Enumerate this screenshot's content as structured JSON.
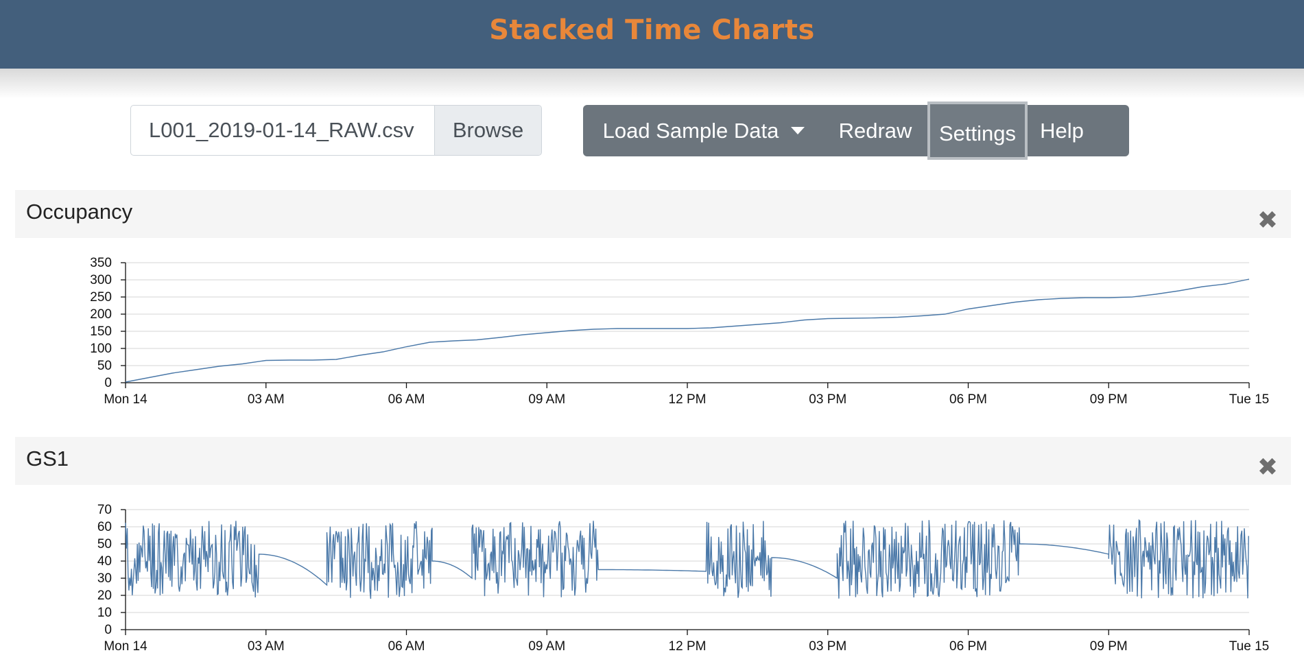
{
  "header": {
    "title": "Stacked Time Charts"
  },
  "file_input": {
    "value": "L001_2019-01-14_RAW.csv",
    "browse_label": "Browse"
  },
  "toolbar": {
    "load_sample_label": "Load Sample Data",
    "redraw_label": "Redraw",
    "settings_label": "Settings",
    "help_label": "Help"
  },
  "close_glyph": "✖",
  "colors": {
    "header_bg": "#435f7c",
    "title": "#e8873a",
    "line": "#4a78a8",
    "toolbar": "#6c757d"
  },
  "chart_data": [
    {
      "type": "line",
      "title": "Occupancy",
      "ylim": [
        0,
        350
      ],
      "yticks": [
        0,
        50,
        100,
        150,
        200,
        250,
        300,
        350
      ],
      "xlim": [
        0,
        24
      ],
      "xticks": [
        0,
        3,
        6,
        9,
        12,
        15,
        18,
        21,
        24
      ],
      "xtick_labels": [
        "Mon 14",
        "03 AM",
        "06 AM",
        "09 AM",
        "12 PM",
        "03 PM",
        "06 PM",
        "09 PM",
        "Tue 15"
      ],
      "grid": true,
      "x_unit": "hours from Mon 14 00:00",
      "x": [
        0,
        0.5,
        1,
        1.5,
        2,
        2.5,
        3,
        3.5,
        4,
        4.5,
        5,
        5.5,
        6,
        6.5,
        7,
        7.5,
        8,
        8.5,
        9,
        9.5,
        10,
        10.5,
        11,
        11.5,
        12,
        12.5,
        13,
        13.5,
        14,
        14.5,
        15,
        15.5,
        16,
        16.5,
        17,
        17.5,
        18,
        18.5,
        19,
        19.5,
        20,
        20.5,
        21,
        21.5,
        22,
        22.5,
        23,
        23.5,
        24
      ],
      "y": [
        2,
        15,
        28,
        38,
        48,
        55,
        65,
        66,
        66,
        68,
        80,
        90,
        105,
        118,
        122,
        125,
        132,
        140,
        146,
        152,
        156,
        158,
        158,
        158,
        158,
        160,
        165,
        170,
        175,
        183,
        187,
        188,
        189,
        191,
        195,
        200,
        215,
        225,
        235,
        242,
        246,
        248,
        248,
        250,
        258,
        268,
        280,
        288,
        302
      ]
    },
    {
      "type": "line",
      "title": "GS1",
      "ylim": [
        0,
        70
      ],
      "yticks": [
        0,
        10,
        20,
        30,
        40,
        50,
        60,
        70
      ],
      "xlim": [
        0,
        24
      ],
      "xticks": [
        0,
        3,
        6,
        9,
        12,
        15,
        18,
        21,
        24
      ],
      "xtick_labels": [
        "Mon 14",
        "03 AM",
        "06 AM",
        "09 AM",
        "12 PM",
        "03 PM",
        "06 PM",
        "09 PM",
        "Tue 15"
      ],
      "grid": true,
      "x_unit": "hours from Mon 14 00:00",
      "active_ranges": [
        [
          0,
          2.85
        ],
        [
          4.3,
          6.55
        ],
        [
          7.4,
          10.1
        ],
        [
          12.4,
          13.8
        ],
        [
          15.2,
          19.1
        ],
        [
          21.0,
          24
        ]
      ],
      "quiet_ranges": [
        {
          "from": 2.85,
          "to": 4.3,
          "y_start": 44,
          "y_end": 26
        },
        {
          "from": 6.55,
          "to": 7.4,
          "y_start": 40,
          "y_end": 30
        },
        {
          "from": 10.1,
          "to": 12.4,
          "y_start": 35,
          "y_end": 34
        },
        {
          "from": 13.8,
          "to": 15.2,
          "y_start": 42,
          "y_end": 30
        },
        {
          "from": 19.1,
          "to": 21.0,
          "y_start": 50,
          "y_end": 44
        }
      ],
      "active_min": 18,
      "active_max": 64
    }
  ]
}
